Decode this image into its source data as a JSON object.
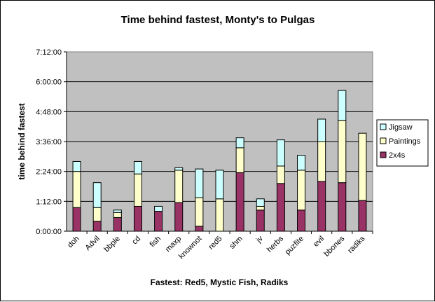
{
  "chart_data": {
    "type": "bar",
    "stacked": true,
    "title": "Time behind fastest, Monty's to Pulgas",
    "xlabel": "Fastest: Red5, Mystic Fish, Radiks",
    "ylabel": "time behind fastest",
    "ylim_seconds": [
      0,
      25920
    ],
    "y_tick_labels": [
      "0:00:00",
      "1:12:00",
      "2:24:00",
      "3:36:00",
      "4:48:00",
      "6:00:00",
      "7:12:00"
    ],
    "grid": true,
    "legend_position": "right",
    "categories": [
      "doh",
      "Advil",
      "bbple",
      "cd",
      "fish",
      "maxp",
      "knownot",
      "red5",
      "shm",
      "jv",
      "herbs",
      "puzfite",
      "evil",
      "bbones",
      "radiks"
    ],
    "series": [
      {
        "name": "2x4s",
        "color": "#993366",
        "values_seconds": [
          3420,
          1440,
          1980,
          3600,
          2880,
          4140,
          720,
          0,
          8460,
          3060,
          6900,
          3060,
          7200,
          7020,
          4440
        ]
      },
      {
        "name": "Paintings",
        "color": "#ffffcc",
        "values_seconds": [
          5220,
          1980,
          720,
          4680,
          0,
          4680,
          4140,
          4680,
          3600,
          540,
          2520,
          5760,
          5760,
          9000,
          9720
        ]
      },
      {
        "name": "Jigsaw",
        "color": "#ccffff",
        "values_seconds": [
          1440,
          3600,
          360,
          1800,
          720,
          360,
          4140,
          4140,
          1440,
          1080,
          3780,
          2160,
          3240,
          4320,
          0
        ]
      }
    ]
  }
}
